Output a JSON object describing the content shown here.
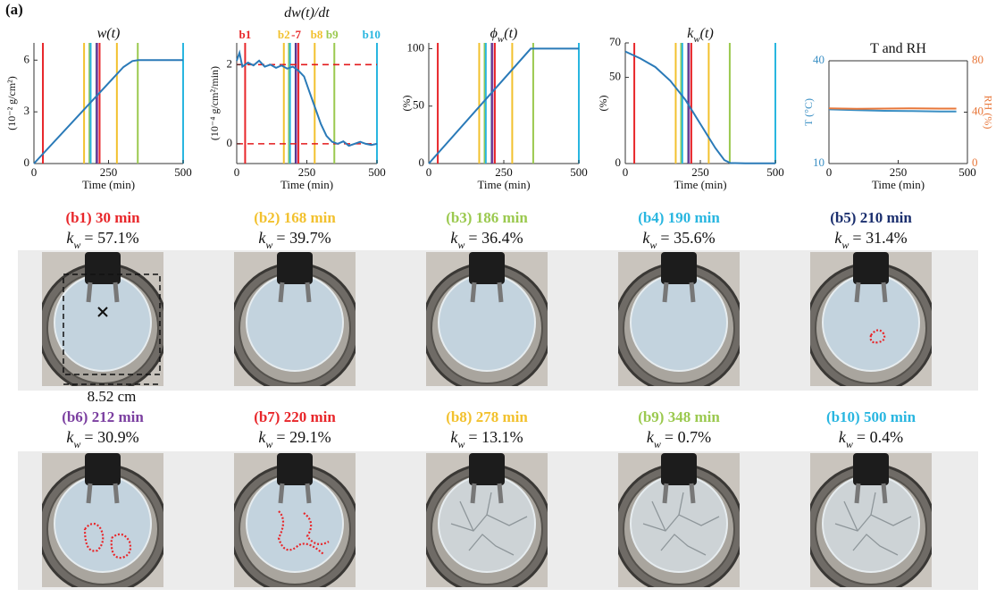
{
  "figure_label": "(a)",
  "kw_symbol": [
    "k",
    "w"
  ],
  "scale_label": "8.52 cm",
  "snapshots": [
    {
      "title": "(b1) 30 min",
      "time": 30,
      "color": "#e8262a",
      "kw": "= 57.1%"
    },
    {
      "title": "(b2) 168 min",
      "time": 168,
      "color": "#f2c12e",
      "kw": "= 39.7%"
    },
    {
      "title": "(b3) 186 min",
      "time": 186,
      "color": "#9bc94f",
      "kw": "= 36.4%"
    },
    {
      "title": "(b4) 190 min",
      "time": 190,
      "color": "#29b6e0",
      "kw": "= 35.6%"
    },
    {
      "title": "(b5) 210 min",
      "time": 210,
      "color": "#1b2f6e",
      "kw": "= 31.4%"
    },
    {
      "title": "(b6) 212 min",
      "time": 212,
      "color": "#7b3fa0",
      "kw": "= 30.9%"
    },
    {
      "title": "(b7) 220 min",
      "time": 220,
      "color": "#e8262a",
      "kw": "= 29.1%"
    },
    {
      "title": "(b8) 278 min",
      "time": 278,
      "color": "#f2c12e",
      "kw": "= 13.1%"
    },
    {
      "title": "(b9) 348 min",
      "time": 348,
      "color": "#9bc94f",
      "kw": "= 0.7%"
    },
    {
      "title": "(b10) 500 min",
      "time": 500,
      "color": "#29b6e0",
      "kw": "= 0.4%"
    }
  ],
  "chart_data": [
    {
      "type": "line",
      "title": [
        "w(t)"
      ],
      "title_italic": true,
      "ylabel": "(10⁻² g/cm²)",
      "xlabel": "Time (min)",
      "x": [
        0,
        300,
        330,
        350,
        500
      ],
      "series": [
        {
          "color": "#2a7ab8",
          "values": [
            0,
            5.6,
            5.95,
            6,
            6
          ]
        }
      ],
      "xlim": [
        0,
        500
      ],
      "xticks": [
        0,
        250,
        500
      ],
      "ylim": [
        0,
        7
      ],
      "yticks": [
        0,
        3,
        6
      ],
      "markers": true
    },
    {
      "type": "line",
      "title": [
        "dw(t)/dt"
      ],
      "title_italic": true,
      "ylabel": "(10⁻⁴ g/cm²/min)",
      "xlabel": "Time (min)",
      "x": [
        0,
        10,
        20,
        40,
        60,
        80,
        100,
        120,
        140,
        160,
        180,
        200,
        220,
        240,
        260,
        280,
        300,
        320,
        340,
        360,
        380,
        400,
        420,
        440,
        460,
        480,
        500
      ],
      "series": [
        {
          "color": "#2a7ab8",
          "values": [
            2.1,
            2.3,
            1.95,
            2.05,
            1.98,
            2.1,
            1.95,
            2.0,
            1.92,
            1.98,
            1.9,
            1.95,
            1.85,
            1.7,
            1.3,
            0.9,
            0.5,
            0.2,
            0.05,
            0.0,
            0.06,
            -0.05,
            0.0,
            0.05,
            0.0,
            -0.03,
            0.0
          ]
        }
      ],
      "hlines": [
        {
          "value": 2,
          "color": "#e31a1c"
        },
        {
          "value": 0,
          "color": "#e31a1c"
        }
      ],
      "top_labels": [
        {
          "text": "b1",
          "x": 30,
          "color": "#e8262a"
        },
        {
          "text": "b2",
          "x": 168,
          "color": "#f2c12e"
        },
        {
          "text": "-7",
          "x": 212,
          "color": "#e8262a"
        },
        {
          "text": "b8",
          "x": 285,
          "color": "#f2c12e"
        },
        {
          "text": "b9",
          "x": 340,
          "color": "#9bc94f"
        },
        {
          "text": "b10",
          "x": 480,
          "color": "#29b6e0"
        }
      ],
      "xlim": [
        0,
        500
      ],
      "xticks": [
        0,
        250,
        500
      ],
      "ylim": [
        -0.5,
        2.55
      ],
      "yticks": [
        0,
        2
      ],
      "markers": true
    },
    {
      "type": "line",
      "title": [
        "ϕ",
        "w",
        "(t)"
      ],
      "title_italic": true,
      "ylabel": "(%)",
      "xlabel": "Time (min)",
      "x": [
        0,
        340,
        500
      ],
      "series": [
        {
          "color": "#2a7ab8",
          "values": [
            0,
            100,
            100
          ]
        }
      ],
      "xlim": [
        0,
        500
      ],
      "xticks": [
        0,
        250,
        500
      ],
      "ylim": [
        0,
        105
      ],
      "yticks": [
        0,
        50,
        100
      ],
      "markers": true
    },
    {
      "type": "line",
      "title": [
        "k",
        "w",
        "(t)"
      ],
      "title_italic": true,
      "ylabel": "(%)",
      "xlabel": "Time (min)",
      "x": [
        0,
        50,
        100,
        150,
        200,
        250,
        300,
        330,
        350,
        400,
        450,
        500
      ],
      "series": [
        {
          "color": "#2a7ab8",
          "values": [
            65,
            61,
            56,
            48,
            37,
            23,
            9,
            2,
            0.3,
            0.1,
            0.1,
            0.1
          ]
        }
      ],
      "xlim": [
        0,
        500
      ],
      "xticks": [
        0,
        250,
        500
      ],
      "ylim": [
        0,
        70
      ],
      "yticks": [
        0,
        50,
        70
      ],
      "markers": true
    },
    {
      "type": "line",
      "title": [
        "T and RH"
      ],
      "title_italic": false,
      "ylabel": "T (°C)",
      "y2label": "RH (%)",
      "xlabel": "Time (min)",
      "box": true,
      "x": [
        0,
        100,
        200,
        300,
        400,
        460
      ],
      "series": [
        {
          "color": "#3a8fc4",
          "values": [
            25.8,
            25.6,
            25.4,
            25.3,
            25.2,
            25.2
          ]
        },
        {
          "color": "#e8773a",
          "axis": "y2",
          "values": [
            43,
            42.6,
            42.8,
            43,
            42.8,
            42.8
          ]
        }
      ],
      "xlim": [
        0,
        500
      ],
      "xticks": [
        0,
        250,
        500
      ],
      "ylim": [
        10,
        40
      ],
      "yticks": [
        10,
        40
      ],
      "y2lim": [
        0,
        80
      ],
      "y2ticks": [
        0,
        40,
        80
      ]
    }
  ]
}
